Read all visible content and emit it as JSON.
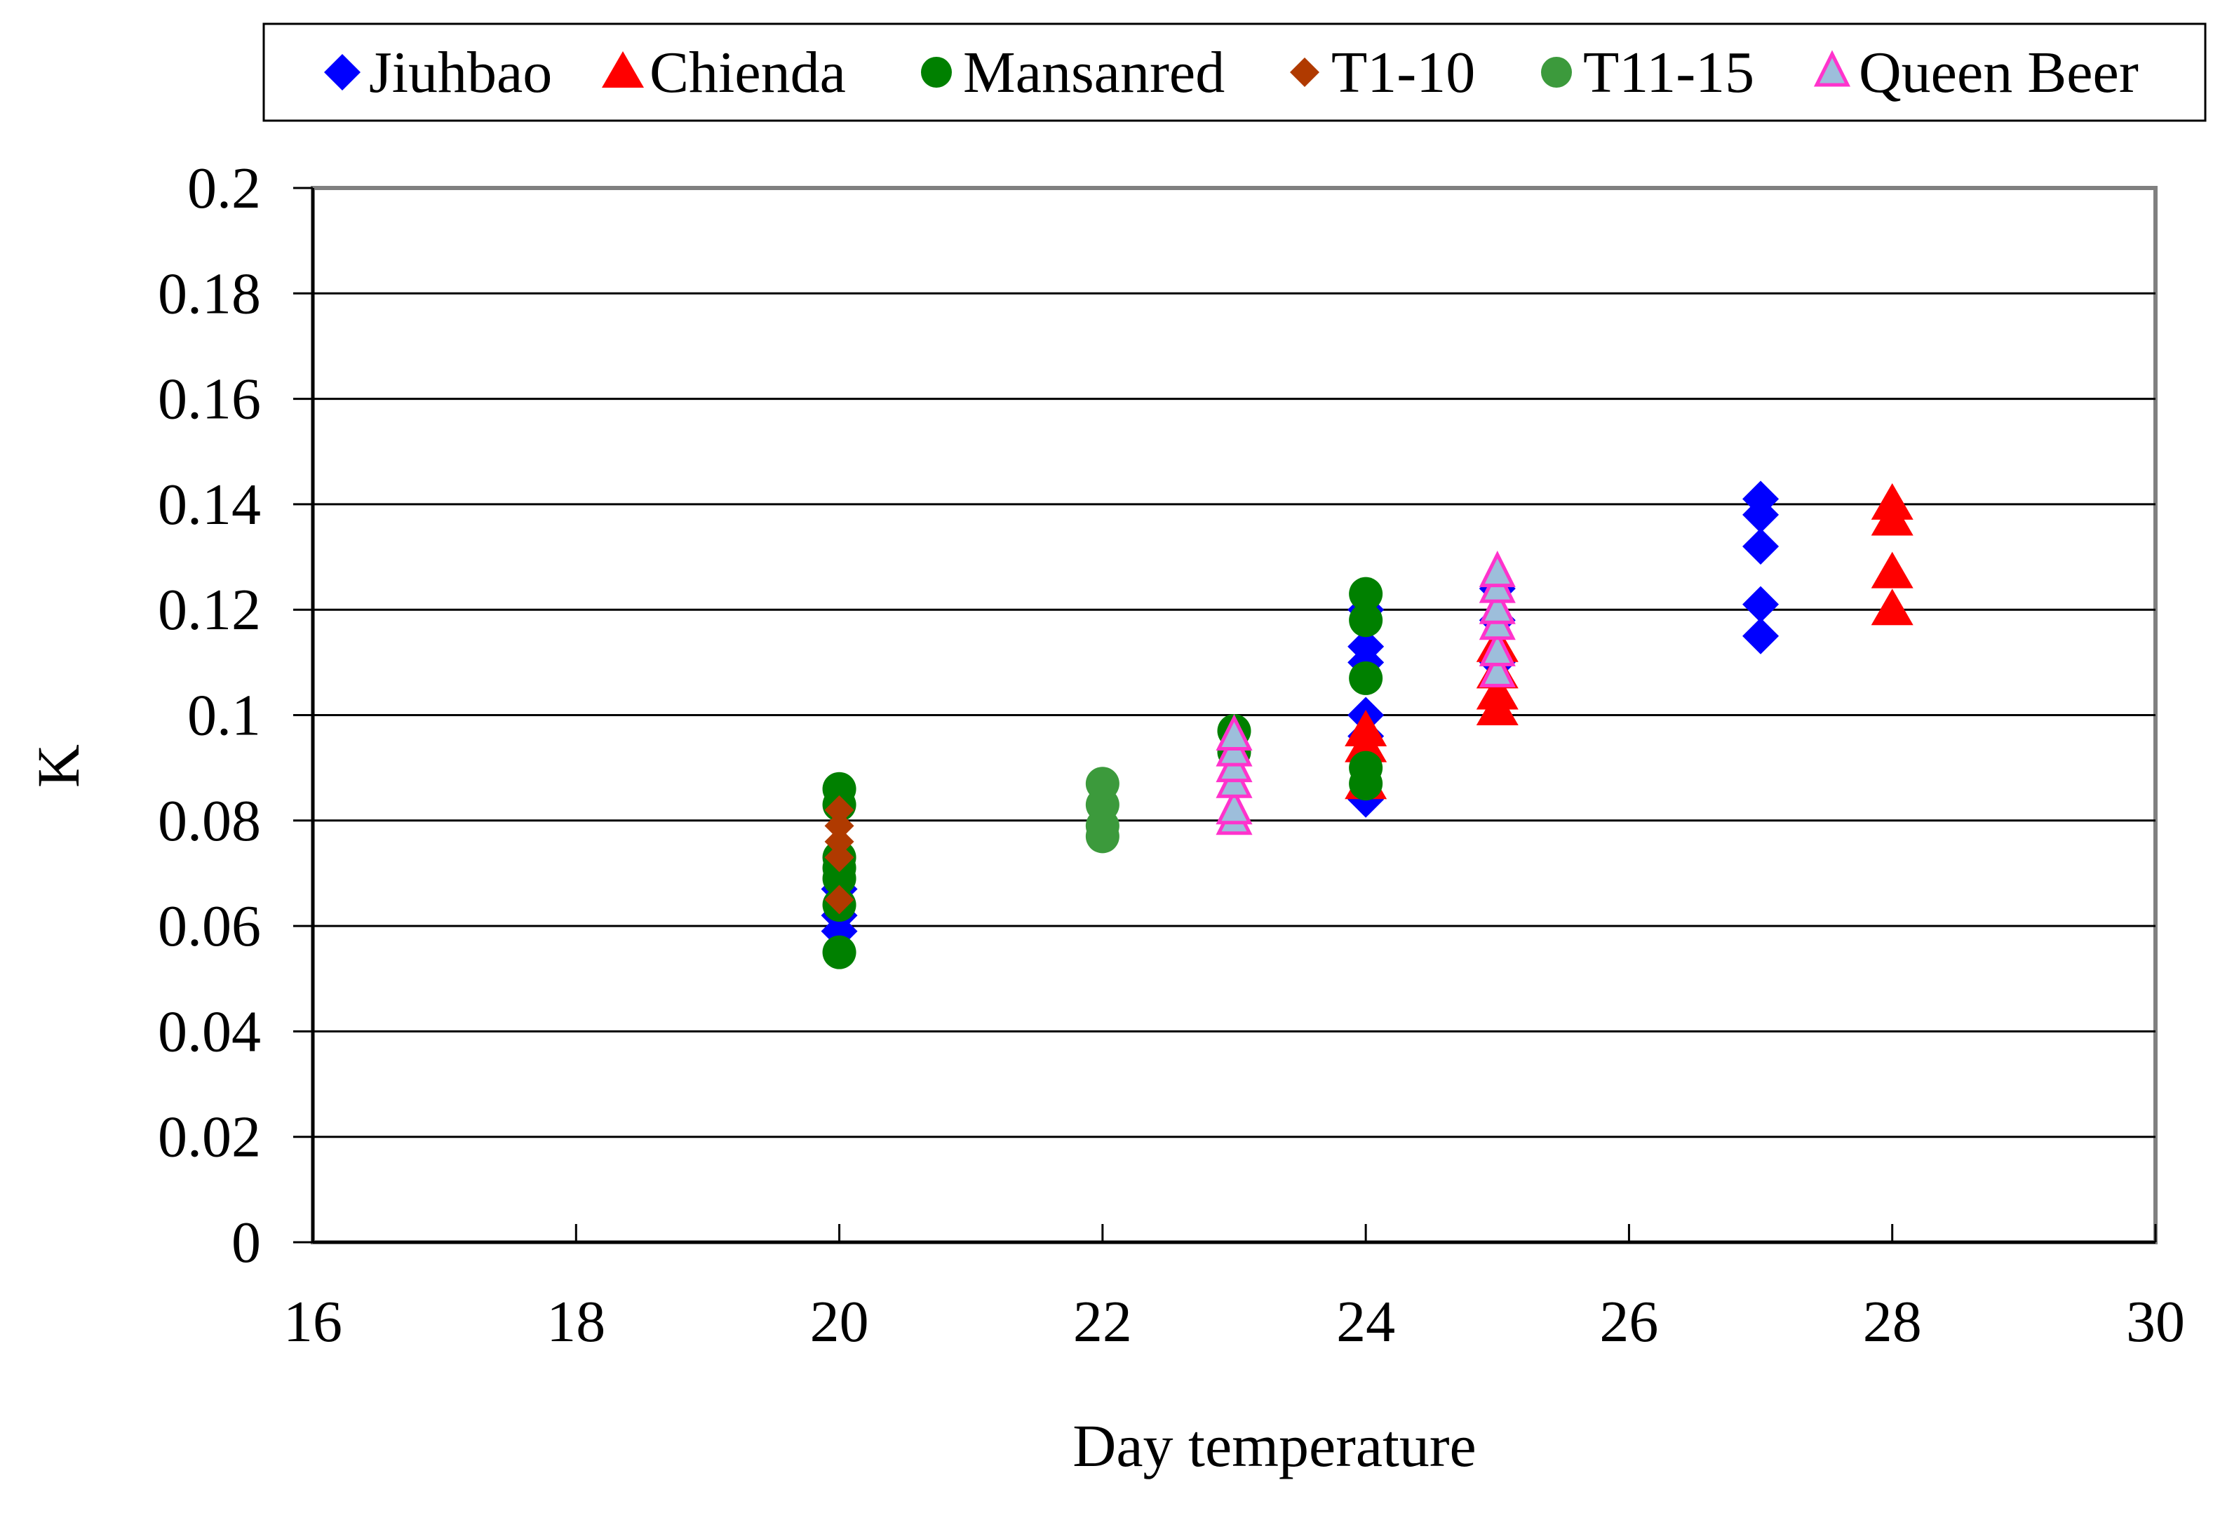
{
  "chart_data": {
    "type": "scatter",
    "title": "",
    "xlabel": "Day temperature",
    "ylabel": "K",
    "xlim": [
      16,
      30
    ],
    "ylim": [
      0,
      0.2
    ],
    "x_ticks": [
      "16",
      "18",
      "20",
      "22",
      "24",
      "26",
      "28",
      "30"
    ],
    "y_ticks": [
      "0",
      "0.02",
      "0.04",
      "0.06",
      "0.08",
      "0.1",
      "0.12",
      "0.14",
      "0.16",
      "0.18",
      "0.2"
    ],
    "grid": "horizontal",
    "legend_position": "top",
    "series": [
      {
        "name": "Jiuhbao",
        "marker": "diamond",
        "color": "#0000FF",
        "points": [
          [
            20,
            0.059
          ],
          [
            20,
            0.062
          ],
          [
            20,
            0.067
          ],
          [
            24,
            0.084
          ],
          [
            24,
            0.096
          ],
          [
            24,
            0.1
          ],
          [
            24,
            0.11
          ],
          [
            24,
            0.113
          ],
          [
            24,
            0.12
          ],
          [
            25,
            0.11
          ],
          [
            25,
            0.118
          ],
          [
            25,
            0.124
          ],
          [
            27,
            0.115
          ],
          [
            27,
            0.121
          ],
          [
            27,
            0.132
          ],
          [
            27,
            0.138
          ],
          [
            27,
            0.141
          ]
        ]
      },
      {
        "name": "Chienda",
        "marker": "triangle",
        "color": "#FF0000",
        "points": [
          [
            24,
            0.087
          ],
          [
            24,
            0.094
          ],
          [
            24,
            0.097
          ],
          [
            25,
            0.101
          ],
          [
            25,
            0.104
          ],
          [
            25,
            0.108
          ],
          [
            25,
            0.113
          ],
          [
            28,
            0.12
          ],
          [
            28,
            0.127
          ],
          [
            28,
            0.137
          ],
          [
            28,
            0.14
          ]
        ]
      },
      {
        "name": "Mansanred",
        "marker": "circle",
        "color": "#008000",
        "points": [
          [
            20,
            0.055
          ],
          [
            20,
            0.064
          ],
          [
            20,
            0.069
          ],
          [
            20,
            0.071
          ],
          [
            20,
            0.073
          ],
          [
            20,
            0.083
          ],
          [
            20,
            0.086
          ],
          [
            23,
            0.093
          ],
          [
            23,
            0.097
          ],
          [
            24,
            0.087
          ],
          [
            24,
            0.09
          ],
          [
            24,
            0.107
          ],
          [
            24,
            0.118
          ],
          [
            24,
            0.123
          ]
        ]
      },
      {
        "name": "T1-10",
        "marker": "diamond-small",
        "color": "#B03A00",
        "points": [
          [
            20,
            0.065
          ],
          [
            20,
            0.073
          ],
          [
            20,
            0.076
          ],
          [
            20,
            0.079
          ],
          [
            20,
            0.082
          ]
        ]
      },
      {
        "name": "T11-15",
        "marker": "circle",
        "color": "#3C9A3C",
        "points": [
          [
            22,
            0.077
          ],
          [
            22,
            0.079
          ],
          [
            22,
            0.083
          ],
          [
            22,
            0.087
          ]
        ]
      },
      {
        "name": "Queen Beer",
        "marker": "triangle-outline",
        "color": "#9DBEDB",
        "stroke": "#FF33CC",
        "points": [
          [
            23,
            0.08
          ],
          [
            23,
            0.082
          ],
          [
            23,
            0.087
          ],
          [
            23,
            0.09
          ],
          [
            23,
            0.093
          ],
          [
            23,
            0.096
          ],
          [
            25,
            0.108
          ],
          [
            25,
            0.112
          ],
          [
            25,
            0.117
          ],
          [
            25,
            0.12
          ],
          [
            25,
            0.124
          ],
          [
            25,
            0.127
          ]
        ]
      }
    ]
  }
}
